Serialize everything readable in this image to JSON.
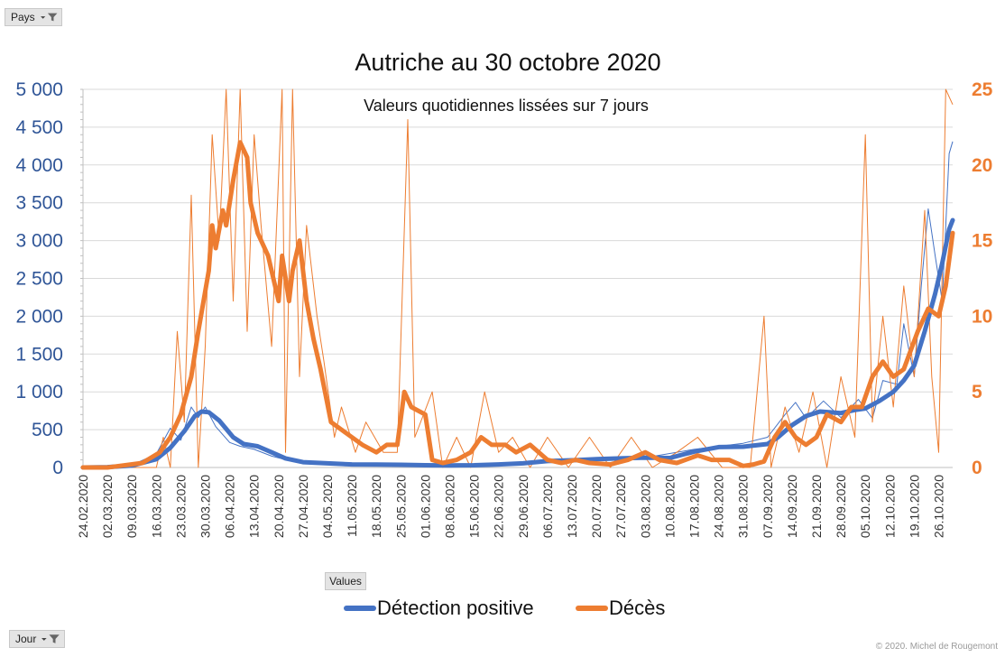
{
  "filters": {
    "pays_label": "Pays",
    "jour_label": "Jour",
    "values_label": "Values"
  },
  "copyright": "© 2020. Michel de Rougemont",
  "icons": [
    "filter-icon",
    "dropdown-arrow-icon"
  ],
  "chart_data": {
    "type": "line",
    "title": "Autriche au 30 octobre 2020",
    "subtitle": "Valeurs quotidiennes lissées sur 7 jours",
    "x_start": "2020-02-24",
    "x_end": "2020-10-30",
    "x_tick_labels": [
      "24.02.2020",
      "02.03.2020",
      "09.03.2020",
      "16.03.2020",
      "23.03.2020",
      "30.03.2020",
      "06.04.2020",
      "13.04.2020",
      "20.04.2020",
      "27.04.2020",
      "04.05.2020",
      "11.05.2020",
      "18.05.2020",
      "25.05.2020",
      "01.06.2020",
      "08.06.2020",
      "15.06.2020",
      "22.06.2020",
      "29.06.2020",
      "06.07.2020",
      "13.07.2020",
      "20.07.2020",
      "27.07.2020",
      "03.08.2020",
      "10.08.2020",
      "17.08.2020",
      "24.08.2020",
      "31.08.2020",
      "07.09.2020",
      "14.09.2020",
      "21.09.2020",
      "28.09.2020",
      "05.10.2020",
      "12.10.2020",
      "19.10.2020",
      "26.10.2020"
    ],
    "y_left": {
      "min": 0,
      "max": 5000,
      "ticks": [
        0,
        500,
        1000,
        1500,
        2000,
        2500,
        3000,
        3500,
        4000,
        4500,
        5000
      ],
      "tick_labels": [
        "0",
        "500",
        "1 000",
        "1 500",
        "2 000",
        "2 500",
        "3 000",
        "3 500",
        "4 000",
        "4 500",
        "5 000"
      ],
      "color": "#2f5597"
    },
    "y_right": {
      "min": 0,
      "max": 25,
      "ticks": [
        0,
        5,
        10,
        15,
        20,
        25
      ],
      "tick_labels": [
        "0",
        "5",
        "10",
        "15",
        "20",
        "25"
      ],
      "color": "#ed7d31"
    },
    "grid": true,
    "legend_position": "bottom",
    "series": [
      {
        "name": "Détection positive",
        "axis": "left",
        "color": "#4472c4",
        "smoothed": [
          [
            "2020-02-24",
            0
          ],
          [
            "2020-03-02",
            5
          ],
          [
            "2020-03-09",
            25
          ],
          [
            "2020-03-16",
            110
          ],
          [
            "2020-03-20",
            260
          ],
          [
            "2020-03-24",
            480
          ],
          [
            "2020-03-27",
            680
          ],
          [
            "2020-03-29",
            740
          ],
          [
            "2020-03-31",
            730
          ],
          [
            "2020-04-03",
            620
          ],
          [
            "2020-04-07",
            400
          ],
          [
            "2020-04-10",
            310
          ],
          [
            "2020-04-14",
            280
          ],
          [
            "2020-04-18",
            200
          ],
          [
            "2020-04-22",
            120
          ],
          [
            "2020-04-27",
            70
          ],
          [
            "2020-05-04",
            55
          ],
          [
            "2020-05-11",
            40
          ],
          [
            "2020-05-18",
            38
          ],
          [
            "2020-05-25",
            36
          ],
          [
            "2020-06-01",
            30
          ],
          [
            "2020-06-08",
            28
          ],
          [
            "2020-06-15",
            30
          ],
          [
            "2020-06-22",
            40
          ],
          [
            "2020-06-29",
            55
          ],
          [
            "2020-07-06",
            85
          ],
          [
            "2020-07-13",
            95
          ],
          [
            "2020-07-20",
            110
          ],
          [
            "2020-07-27",
            120
          ],
          [
            "2020-08-03",
            130
          ],
          [
            "2020-08-10",
            125
          ],
          [
            "2020-08-17",
            210
          ],
          [
            "2020-08-24",
            270
          ],
          [
            "2020-08-31",
            275
          ],
          [
            "2020-09-07",
            310
          ],
          [
            "2020-09-10",
            400
          ],
          [
            "2020-09-14",
            560
          ],
          [
            "2020-09-18",
            680
          ],
          [
            "2020-09-22",
            740
          ],
          [
            "2020-09-28",
            720
          ],
          [
            "2020-10-02",
            760
          ],
          [
            "2020-10-05",
            780
          ],
          [
            "2020-10-09",
            880
          ],
          [
            "2020-10-13",
            1000
          ],
          [
            "2020-10-16",
            1150
          ],
          [
            "2020-10-19",
            1350
          ],
          [
            "2020-10-22",
            1800
          ],
          [
            "2020-10-25",
            2300
          ],
          [
            "2020-10-27",
            2700
          ],
          [
            "2020-10-29",
            3150
          ],
          [
            "2020-10-30",
            3270
          ]
        ],
        "daily": [
          [
            "2020-02-24",
            0
          ],
          [
            "2020-03-09",
            30
          ],
          [
            "2020-03-16",
            180
          ],
          [
            "2020-03-20",
            520
          ],
          [
            "2020-03-23",
            360
          ],
          [
            "2020-03-26",
            800
          ],
          [
            "2020-03-28",
            660
          ],
          [
            "2020-03-30",
            800
          ],
          [
            "2020-04-02",
            540
          ],
          [
            "2020-04-06",
            330
          ],
          [
            "2020-04-09",
            280
          ],
          [
            "2020-04-13",
            240
          ],
          [
            "2020-04-18",
            150
          ],
          [
            "2020-04-24",
            80
          ],
          [
            "2020-05-01",
            60
          ],
          [
            "2020-05-11",
            45
          ],
          [
            "2020-06-01",
            30
          ],
          [
            "2020-06-22",
            45
          ],
          [
            "2020-07-06",
            95
          ],
          [
            "2020-07-20",
            120
          ],
          [
            "2020-08-03",
            130
          ],
          [
            "2020-08-17",
            240
          ],
          [
            "2020-08-31",
            320
          ],
          [
            "2020-09-07",
            400
          ],
          [
            "2020-09-12",
            700
          ],
          [
            "2020-09-15",
            860
          ],
          [
            "2020-09-18",
            650
          ],
          [
            "2020-09-23",
            880
          ],
          [
            "2020-09-28",
            660
          ],
          [
            "2020-10-03",
            900
          ],
          [
            "2020-10-07",
            650
          ],
          [
            "2020-10-10",
            1150
          ],
          [
            "2020-10-14",
            1100
          ],
          [
            "2020-10-16",
            1900
          ],
          [
            "2020-10-19",
            1200
          ],
          [
            "2020-10-21",
            2400
          ],
          [
            "2020-10-23",
            3420
          ],
          [
            "2020-10-25",
            2800
          ],
          [
            "2020-10-27",
            2200
          ],
          [
            "2020-10-29",
            4150
          ],
          [
            "2020-10-30",
            4310
          ]
        ]
      },
      {
        "name": "Décès",
        "axis": "right",
        "color": "#ed7d31",
        "smoothed": [
          [
            "2020-02-24",
            0
          ],
          [
            "2020-03-02",
            0
          ],
          [
            "2020-03-12",
            0.3
          ],
          [
            "2020-03-17",
            1
          ],
          [
            "2020-03-20",
            2
          ],
          [
            "2020-03-23",
            3.5
          ],
          [
            "2020-03-26",
            6
          ],
          [
            "2020-03-28",
            9
          ],
          [
            "2020-03-31",
            13
          ],
          [
            "2020-04-01",
            16
          ],
          [
            "2020-04-02",
            14.5
          ],
          [
            "2020-04-04",
            17
          ],
          [
            "2020-04-05",
            16
          ],
          [
            "2020-04-07",
            19
          ],
          [
            "2020-04-09",
            21.5
          ],
          [
            "2020-04-11",
            20.5
          ],
          [
            "2020-04-12",
            17.5
          ],
          [
            "2020-04-14",
            15.5
          ],
          [
            "2020-04-17",
            14
          ],
          [
            "2020-04-20",
            11
          ],
          [
            "2020-04-21",
            14
          ],
          [
            "2020-04-23",
            11
          ],
          [
            "2020-04-24",
            13
          ],
          [
            "2020-04-26",
            15
          ],
          [
            "2020-04-28",
            11
          ],
          [
            "2020-04-30",
            8.5
          ],
          [
            "2020-05-02",
            6.5
          ],
          [
            "2020-05-05",
            3
          ],
          [
            "2020-05-08",
            2.5
          ],
          [
            "2020-05-11",
            2
          ],
          [
            "2020-05-14",
            1.5
          ],
          [
            "2020-05-18",
            1
          ],
          [
            "2020-05-21",
            1.5
          ],
          [
            "2020-05-24",
            1.5
          ],
          [
            "2020-05-26",
            5
          ],
          [
            "2020-05-28",
            4
          ],
          [
            "2020-06-01",
            3.5
          ],
          [
            "2020-06-03",
            0.5
          ],
          [
            "2020-06-06",
            0.3
          ],
          [
            "2020-06-10",
            0.5
          ],
          [
            "2020-06-14",
            1
          ],
          [
            "2020-06-17",
            2
          ],
          [
            "2020-06-20",
            1.5
          ],
          [
            "2020-06-24",
            1.5
          ],
          [
            "2020-06-27",
            1
          ],
          [
            "2020-07-01",
            1.5
          ],
          [
            "2020-07-06",
            0.5
          ],
          [
            "2020-07-10",
            0.3
          ],
          [
            "2020-07-14",
            0.5
          ],
          [
            "2020-07-18",
            0.3
          ],
          [
            "2020-07-24",
            0.2
          ],
          [
            "2020-07-29",
            0.5
          ],
          [
            "2020-08-03",
            1
          ],
          [
            "2020-08-07",
            0.5
          ],
          [
            "2020-08-12",
            0.3
          ],
          [
            "2020-08-18",
            0.8
          ],
          [
            "2020-08-22",
            0.5
          ],
          [
            "2020-08-27",
            0.5
          ],
          [
            "2020-08-31",
            0.1
          ],
          [
            "2020-09-03",
            0.2
          ],
          [
            "2020-09-06",
            0.4
          ],
          [
            "2020-09-09",
            2
          ],
          [
            "2020-09-12",
            3
          ],
          [
            "2020-09-15",
            2
          ],
          [
            "2020-09-18",
            1.5
          ],
          [
            "2020-09-21",
            2
          ],
          [
            "2020-09-24",
            3.5
          ],
          [
            "2020-09-28",
            3
          ],
          [
            "2020-10-01",
            4
          ],
          [
            "2020-10-04",
            4
          ],
          [
            "2020-10-07",
            6
          ],
          [
            "2020-10-10",
            7
          ],
          [
            "2020-10-13",
            6
          ],
          [
            "2020-10-16",
            6.5
          ],
          [
            "2020-10-20",
            9
          ],
          [
            "2020-10-23",
            10.5
          ],
          [
            "2020-10-26",
            10
          ],
          [
            "2020-10-28",
            12
          ],
          [
            "2020-10-30",
            15.5
          ]
        ],
        "daily": [
          [
            "2020-02-24",
            0
          ],
          [
            "2020-03-16",
            0
          ],
          [
            "2020-03-18",
            2
          ],
          [
            "2020-03-20",
            0
          ],
          [
            "2020-03-22",
            9
          ],
          [
            "2020-03-24",
            3
          ],
          [
            "2020-03-26",
            18
          ],
          [
            "2020-03-28",
            0
          ],
          [
            "2020-03-30",
            8
          ],
          [
            "2020-04-01",
            22
          ],
          [
            "2020-04-03",
            15
          ],
          [
            "2020-04-05",
            25
          ],
          [
            "2020-04-07",
            11
          ],
          [
            "2020-04-09",
            28
          ],
          [
            "2020-04-11",
            9
          ],
          [
            "2020-04-13",
            22
          ],
          [
            "2020-04-15",
            16
          ],
          [
            "2020-04-18",
            8
          ],
          [
            "2020-04-21",
            30
          ],
          [
            "2020-04-22",
            1
          ],
          [
            "2020-04-24",
            25
          ],
          [
            "2020-04-26",
            6
          ],
          [
            "2020-04-28",
            16
          ],
          [
            "2020-05-01",
            10
          ],
          [
            "2020-05-03",
            7
          ],
          [
            "2020-05-06",
            2
          ],
          [
            "2020-05-08",
            4
          ],
          [
            "2020-05-12",
            1
          ],
          [
            "2020-05-15",
            3
          ],
          [
            "2020-05-20",
            1
          ],
          [
            "2020-05-24",
            1
          ],
          [
            "2020-05-27",
            23
          ],
          [
            "2020-05-29",
            2
          ],
          [
            "2020-06-03",
            5
          ],
          [
            "2020-06-06",
            0
          ],
          [
            "2020-06-10",
            2
          ],
          [
            "2020-06-14",
            0
          ],
          [
            "2020-06-18",
            5
          ],
          [
            "2020-06-22",
            1
          ],
          [
            "2020-06-26",
            2
          ],
          [
            "2020-07-01",
            0
          ],
          [
            "2020-07-06",
            2
          ],
          [
            "2020-07-12",
            0
          ],
          [
            "2020-07-18",
            2
          ],
          [
            "2020-07-24",
            0
          ],
          [
            "2020-07-30",
            2
          ],
          [
            "2020-08-05",
            0
          ],
          [
            "2020-08-12",
            1
          ],
          [
            "2020-08-18",
            2
          ],
          [
            "2020-08-25",
            0
          ],
          [
            "2020-09-02",
            0
          ],
          [
            "2020-09-06",
            10
          ],
          [
            "2020-09-08",
            0
          ],
          [
            "2020-09-12",
            4
          ],
          [
            "2020-09-16",
            1
          ],
          [
            "2020-09-20",
            5
          ],
          [
            "2020-09-24",
            0
          ],
          [
            "2020-09-28",
            6
          ],
          [
            "2020-10-02",
            2
          ],
          [
            "2020-10-05",
            22
          ],
          [
            "2020-10-07",
            3
          ],
          [
            "2020-10-10",
            10
          ],
          [
            "2020-10-13",
            4
          ],
          [
            "2020-10-16",
            12
          ],
          [
            "2020-10-19",
            6
          ],
          [
            "2020-10-22",
            17
          ],
          [
            "2020-10-24",
            6
          ],
          [
            "2020-10-26",
            1
          ],
          [
            "2020-10-28",
            30
          ],
          [
            "2020-10-30",
            24
          ]
        ]
      }
    ]
  }
}
